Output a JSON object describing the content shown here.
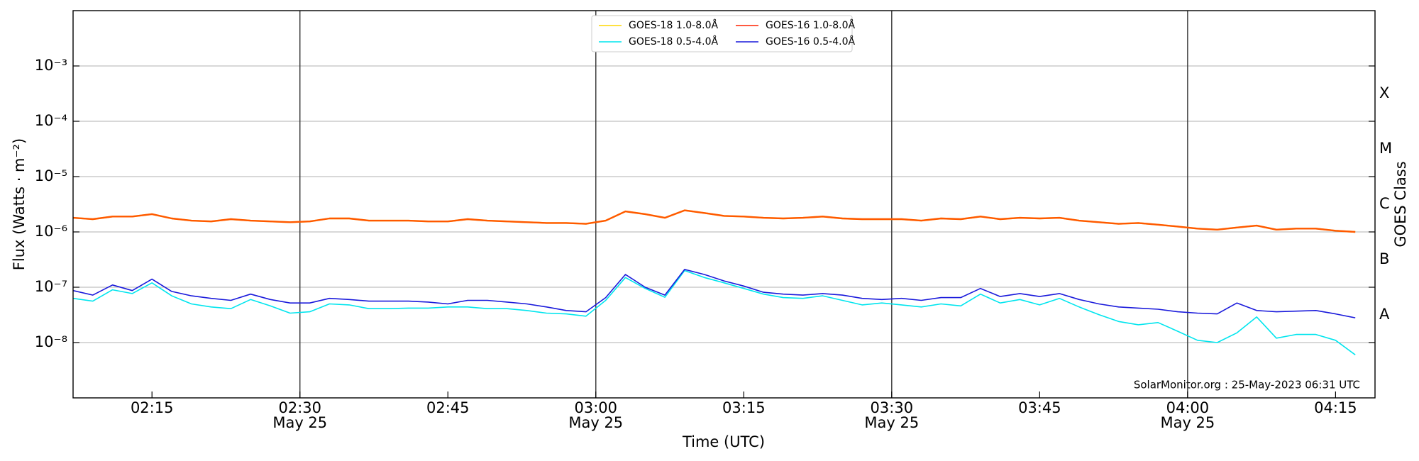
{
  "chart_data": {
    "type": "line",
    "ylabel": "Flux (Watts · m⁻²)",
    "xlabel": "Time (UTC)",
    "y2label": "GOES Class",
    "annotation": "SolarMonitor.org : 25-May-2023 06:31 UTC",
    "log_scale": true,
    "grid": true,
    "legend": "upper center",
    "xlim": [
      "02:07",
      "04:19"
    ],
    "xticks": [
      "02:15",
      "02:30",
      "02:45",
      "03:00",
      "03:15",
      "03:30",
      "03:45",
      "04:00",
      "04:15"
    ],
    "xtick_sublabels": [
      null,
      "May 25",
      null,
      "May 25",
      null,
      "May 25",
      null,
      "May 25",
      null
    ],
    "ylim": [
      1e-09,
      0.01
    ],
    "yticks": [
      {
        "value": 1e-08,
        "label": "10⁻⁸"
      },
      {
        "value": 1e-07,
        "label": "10⁻⁷"
      },
      {
        "value": 1e-06,
        "label": "10⁻⁶"
      },
      {
        "value": 1e-05,
        "label": "10⁻⁵"
      },
      {
        "value": 0.0001,
        "label": "10⁻⁴"
      },
      {
        "value": 0.001,
        "label": "10⁻³"
      }
    ],
    "y2lim": [
      1e-09,
      0.01
    ],
    "y2ticks": [
      {
        "value": 3.16e-08,
        "label": "A"
      },
      {
        "value": 3.16e-07,
        "label": "B"
      },
      {
        "value": 3.16e-06,
        "label": "C"
      },
      {
        "value": 3.16e-05,
        "label": "M"
      },
      {
        "value": 0.000316,
        "label": "X"
      }
    ],
    "x": [
      "02:07",
      "02:09",
      "02:11",
      "02:13",
      "02:15",
      "02:17",
      "02:19",
      "02:21",
      "02:23",
      "02:25",
      "02:27",
      "02:29",
      "02:31",
      "02:33",
      "02:35",
      "02:37",
      "02:39",
      "02:41",
      "02:43",
      "02:45",
      "02:47",
      "02:49",
      "02:51",
      "02:53",
      "02:55",
      "02:57",
      "02:59",
      "03:01",
      "03:03",
      "03:05",
      "03:07",
      "03:09",
      "03:11",
      "03:13",
      "03:15",
      "03:17",
      "03:19",
      "03:21",
      "03:23",
      "03:25",
      "03:27",
      "03:29",
      "03:31",
      "03:33",
      "03:35",
      "03:37",
      "03:39",
      "03:41",
      "03:43",
      "03:45",
      "03:47",
      "03:49",
      "03:51",
      "03:53",
      "03:55",
      "03:57",
      "03:59",
      "04:01",
      "04:03",
      "04:05",
      "04:07",
      "04:09",
      "04:11",
      "04:13",
      "04:15",
      "04:17"
    ],
    "series": [
      {
        "name": "GOES-18 1.0-8.0Å",
        "color": "#ffd700",
        "values": [
          1.8e-06,
          1.7e-06,
          1.9e-06,
          1.9e-06,
          2.1e-06,
          1.75e-06,
          1.6e-06,
          1.55e-06,
          1.7e-06,
          1.6e-06,
          1.55e-06,
          1.5e-06,
          1.55e-06,
          1.75e-06,
          1.75e-06,
          1.6e-06,
          1.6e-06,
          1.6e-06,
          1.55e-06,
          1.55e-06,
          1.7e-06,
          1.6e-06,
          1.55e-06,
          1.5e-06,
          1.45e-06,
          1.45e-06,
          1.4e-06,
          1.6e-06,
          2.35e-06,
          2.1e-06,
          1.8e-06,
          2.45e-06,
          2.2e-06,
          1.95e-06,
          1.9e-06,
          1.8e-06,
          1.75e-06,
          1.8e-06,
          1.9e-06,
          1.75e-06,
          1.7e-06,
          1.7e-06,
          1.7e-06,
          1.6e-06,
          1.75e-06,
          1.7e-06,
          1.9e-06,
          1.7e-06,
          1.8e-06,
          1.75e-06,
          1.8e-06,
          1.6e-06,
          1.5e-06,
          1.4e-06,
          1.45e-06,
          1.35e-06,
          1.25e-06,
          1.15e-06,
          1.1e-06,
          1.2e-06,
          1.3e-06,
          1.1e-06,
          1.15e-06,
          1.15e-06,
          1.05e-06,
          1e-06
        ]
      },
      {
        "name": "GOES-18 0.5-4.0Å",
        "color": "#00e5ee",
        "values": [
          6.3e-08,
          5.6e-08,
          9e-08,
          7.7e-08,
          1.2e-07,
          7e-08,
          5e-08,
          4.4e-08,
          4.1e-08,
          6e-08,
          4.6e-08,
          3.4e-08,
          3.6e-08,
          5e-08,
          4.8e-08,
          4.1e-08,
          4.1e-08,
          4.2e-08,
          4.2e-08,
          4.4e-08,
          4.4e-08,
          4.1e-08,
          4.1e-08,
          3.8e-08,
          3.4e-08,
          3.3e-08,
          3e-08,
          5.8e-08,
          1.5e-07,
          9.5e-08,
          6.6e-08,
          2e-07,
          1.5e-07,
          1.2e-07,
          9.5e-08,
          7.5e-08,
          6.5e-08,
          6.3e-08,
          7e-08,
          5.8e-08,
          4.8e-08,
          5.2e-08,
          4.8e-08,
          4.4e-08,
          5e-08,
          4.6e-08,
          7.5e-08,
          5.2e-08,
          6e-08,
          4.8e-08,
          6.3e-08,
          4.4e-08,
          3.2e-08,
          2.4e-08,
          2.1e-08,
          2.3e-08,
          1.6e-08,
          1.1e-08,
          1e-08,
          1.5e-08,
          2.9e-08,
          1.2e-08,
          1.4e-08,
          1.4e-08,
          1.1e-08,
          6e-09
        ]
      },
      {
        "name": "GOES-16 1.0-8.0Å",
        "color": "#ff2200",
        "values": [
          1.8e-06,
          1.7e-06,
          1.9e-06,
          1.9e-06,
          2.1e-06,
          1.75e-06,
          1.6e-06,
          1.55e-06,
          1.7e-06,
          1.6e-06,
          1.55e-06,
          1.5e-06,
          1.55e-06,
          1.75e-06,
          1.75e-06,
          1.6e-06,
          1.6e-06,
          1.6e-06,
          1.55e-06,
          1.55e-06,
          1.7e-06,
          1.6e-06,
          1.55e-06,
          1.5e-06,
          1.45e-06,
          1.45e-06,
          1.4e-06,
          1.6e-06,
          2.35e-06,
          2.1e-06,
          1.8e-06,
          2.45e-06,
          2.2e-06,
          1.95e-06,
          1.9e-06,
          1.8e-06,
          1.75e-06,
          1.8e-06,
          1.9e-06,
          1.75e-06,
          1.7e-06,
          1.7e-06,
          1.7e-06,
          1.6e-06,
          1.75e-06,
          1.7e-06,
          1.9e-06,
          1.7e-06,
          1.8e-06,
          1.75e-06,
          1.8e-06,
          1.6e-06,
          1.5e-06,
          1.4e-06,
          1.45e-06,
          1.35e-06,
          1.25e-06,
          1.15e-06,
          1.1e-06,
          1.2e-06,
          1.3e-06,
          1.1e-06,
          1.15e-06,
          1.15e-06,
          1.05e-06,
          1e-06
        ]
      },
      {
        "name": "GOES-16 0.5-4.0Å",
        "color": "#1a1adb",
        "values": [
          8.7e-08,
          7.2e-08,
          1.1e-07,
          8.7e-08,
          1.4e-07,
          8.4e-08,
          7e-08,
          6.3e-08,
          5.8e-08,
          7.5e-08,
          6e-08,
          5.2e-08,
          5.2e-08,
          6.3e-08,
          6e-08,
          5.6e-08,
          5.6e-08,
          5.6e-08,
          5.4e-08,
          5e-08,
          5.8e-08,
          5.8e-08,
          5.4e-08,
          5e-08,
          4.4e-08,
          3.8e-08,
          3.6e-08,
          6.5e-08,
          1.7e-07,
          1e-07,
          7.2e-08,
          2.1e-07,
          1.7e-07,
          1.3e-07,
          1.05e-07,
          8.1e-08,
          7.5e-08,
          7.2e-08,
          7.7e-08,
          7.2e-08,
          6.3e-08,
          6e-08,
          6.3e-08,
          5.8e-08,
          6.5e-08,
          6.5e-08,
          9.5e-08,
          6.8e-08,
          7.7e-08,
          6.8e-08,
          7.7e-08,
          6e-08,
          5e-08,
          4.4e-08,
          4.2e-08,
          4e-08,
          3.6e-08,
          3.4e-08,
          3.3e-08,
          5.2e-08,
          3.8e-08,
          3.6e-08,
          3.7e-08,
          3.8e-08,
          3.3e-08,
          2.8e-08
        ]
      }
    ]
  }
}
